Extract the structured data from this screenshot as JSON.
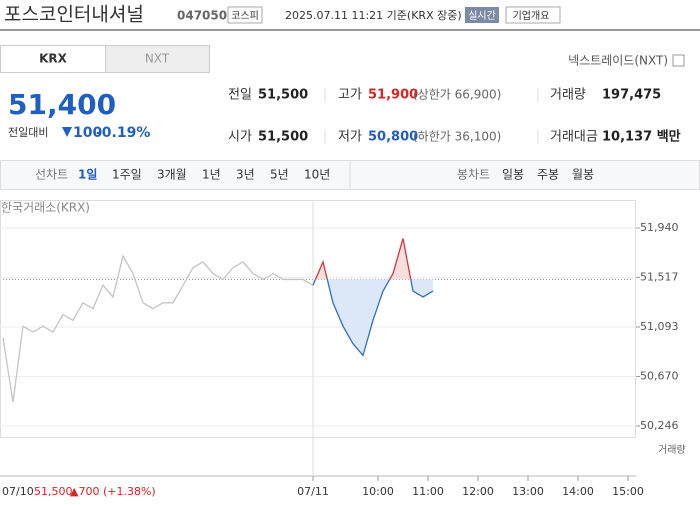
{
  "header": {
    "name": "포스코인터내셔널",
    "code": "047050",
    "market": "코스피",
    "datetime": "2025.07.11 11:21 기준(KRX 장중)",
    "badge": "실시간",
    "button": "기업개요"
  },
  "tabs": [
    "KRX",
    "NXT"
  ],
  "nxt_link": "넥스트레이드(NXT)",
  "price": {
    "current": "51,400",
    "change_label": "전일대비",
    "change": "100",
    "change_pct": "-0.19%"
  },
  "stats": [
    {
      "label": "전일",
      "value": "51,500"
    },
    {
      "label": "고가",
      "value": "51,900",
      "note": "(상한가 66,900)"
    },
    {
      "label": "거래량",
      "value": "197,475"
    },
    {
      "label": "시가",
      "value": "51,500"
    },
    {
      "label": "저가",
      "value": "50,800",
      "note": "(하한가 36,100)"
    },
    {
      "label": "거래대금",
      "value": "10,137 백만"
    }
  ],
  "periods": {
    "line_label": "선차트",
    "line": [
      "1일",
      "1주일",
      "3개월",
      "1년",
      "3년",
      "5년",
      "10년"
    ],
    "candle_label": "봉차트",
    "candle": [
      "일봉",
      "주봉",
      "월봉"
    ]
  },
  "chart_data": {
    "type": "line",
    "source": "한국거래소(KRX)",
    "volume_label": "거래량",
    "xlim": [
      0,
      63
    ],
    "ylim": [
      50246,
      51940
    ],
    "base": 51500,
    "yticks": [
      {
        "value": 51940,
        "label": "51,940"
      },
      {
        "value": 51517,
        "label": "51,517"
      },
      {
        "value": 51093,
        "label": "51,093"
      },
      {
        "value": 50670,
        "label": "50,670"
      },
      {
        "value": 50246,
        "label": "50,246"
      }
    ],
    "xticks": [
      {
        "value": 31,
        "label": "07/11"
      },
      {
        "value": 37.5,
        "label": "10:00"
      },
      {
        "value": 42.5,
        "label": "11:00"
      },
      {
        "value": 47.5,
        "label": "12:00"
      },
      {
        "value": 52.5,
        "label": "13:00"
      },
      {
        "value": 57.5,
        "label": "14:00"
      },
      {
        "value": 62.5,
        "label": "15:00"
      }
    ],
    "series": [
      {
        "color": "#c4c4c4",
        "values": [
          51000,
          50450,
          51100,
          51050,
          51100,
          51050,
          51200,
          51150,
          51300,
          51250,
          51450,
          51350,
          51700,
          51550,
          51300,
          51250,
          51300,
          51300,
          51450,
          51600,
          51650,
          51550,
          51500,
          51600,
          51650,
          51550,
          51500,
          51550,
          51500,
          51500,
          51500,
          51450
        ]
      },
      {
        "color": "#2f6fc6",
        "values": [
          null,
          null,
          null,
          null,
          null,
          null,
          null,
          null,
          null,
          null,
          null,
          null,
          null,
          null,
          null,
          null,
          null,
          null,
          null,
          null,
          null,
          null,
          null,
          null,
          null,
          null,
          null,
          null,
          null,
          null,
          null,
          51450,
          51650,
          51300,
          51100,
          50950,
          50850,
          51150,
          51400,
          51550,
          51850,
          51400,
          51350,
          51400
        ]
      }
    ],
    "prev": {
      "date": "07/10",
      "price": "51,500",
      "change": "▲700 (+1.38%)"
    }
  }
}
